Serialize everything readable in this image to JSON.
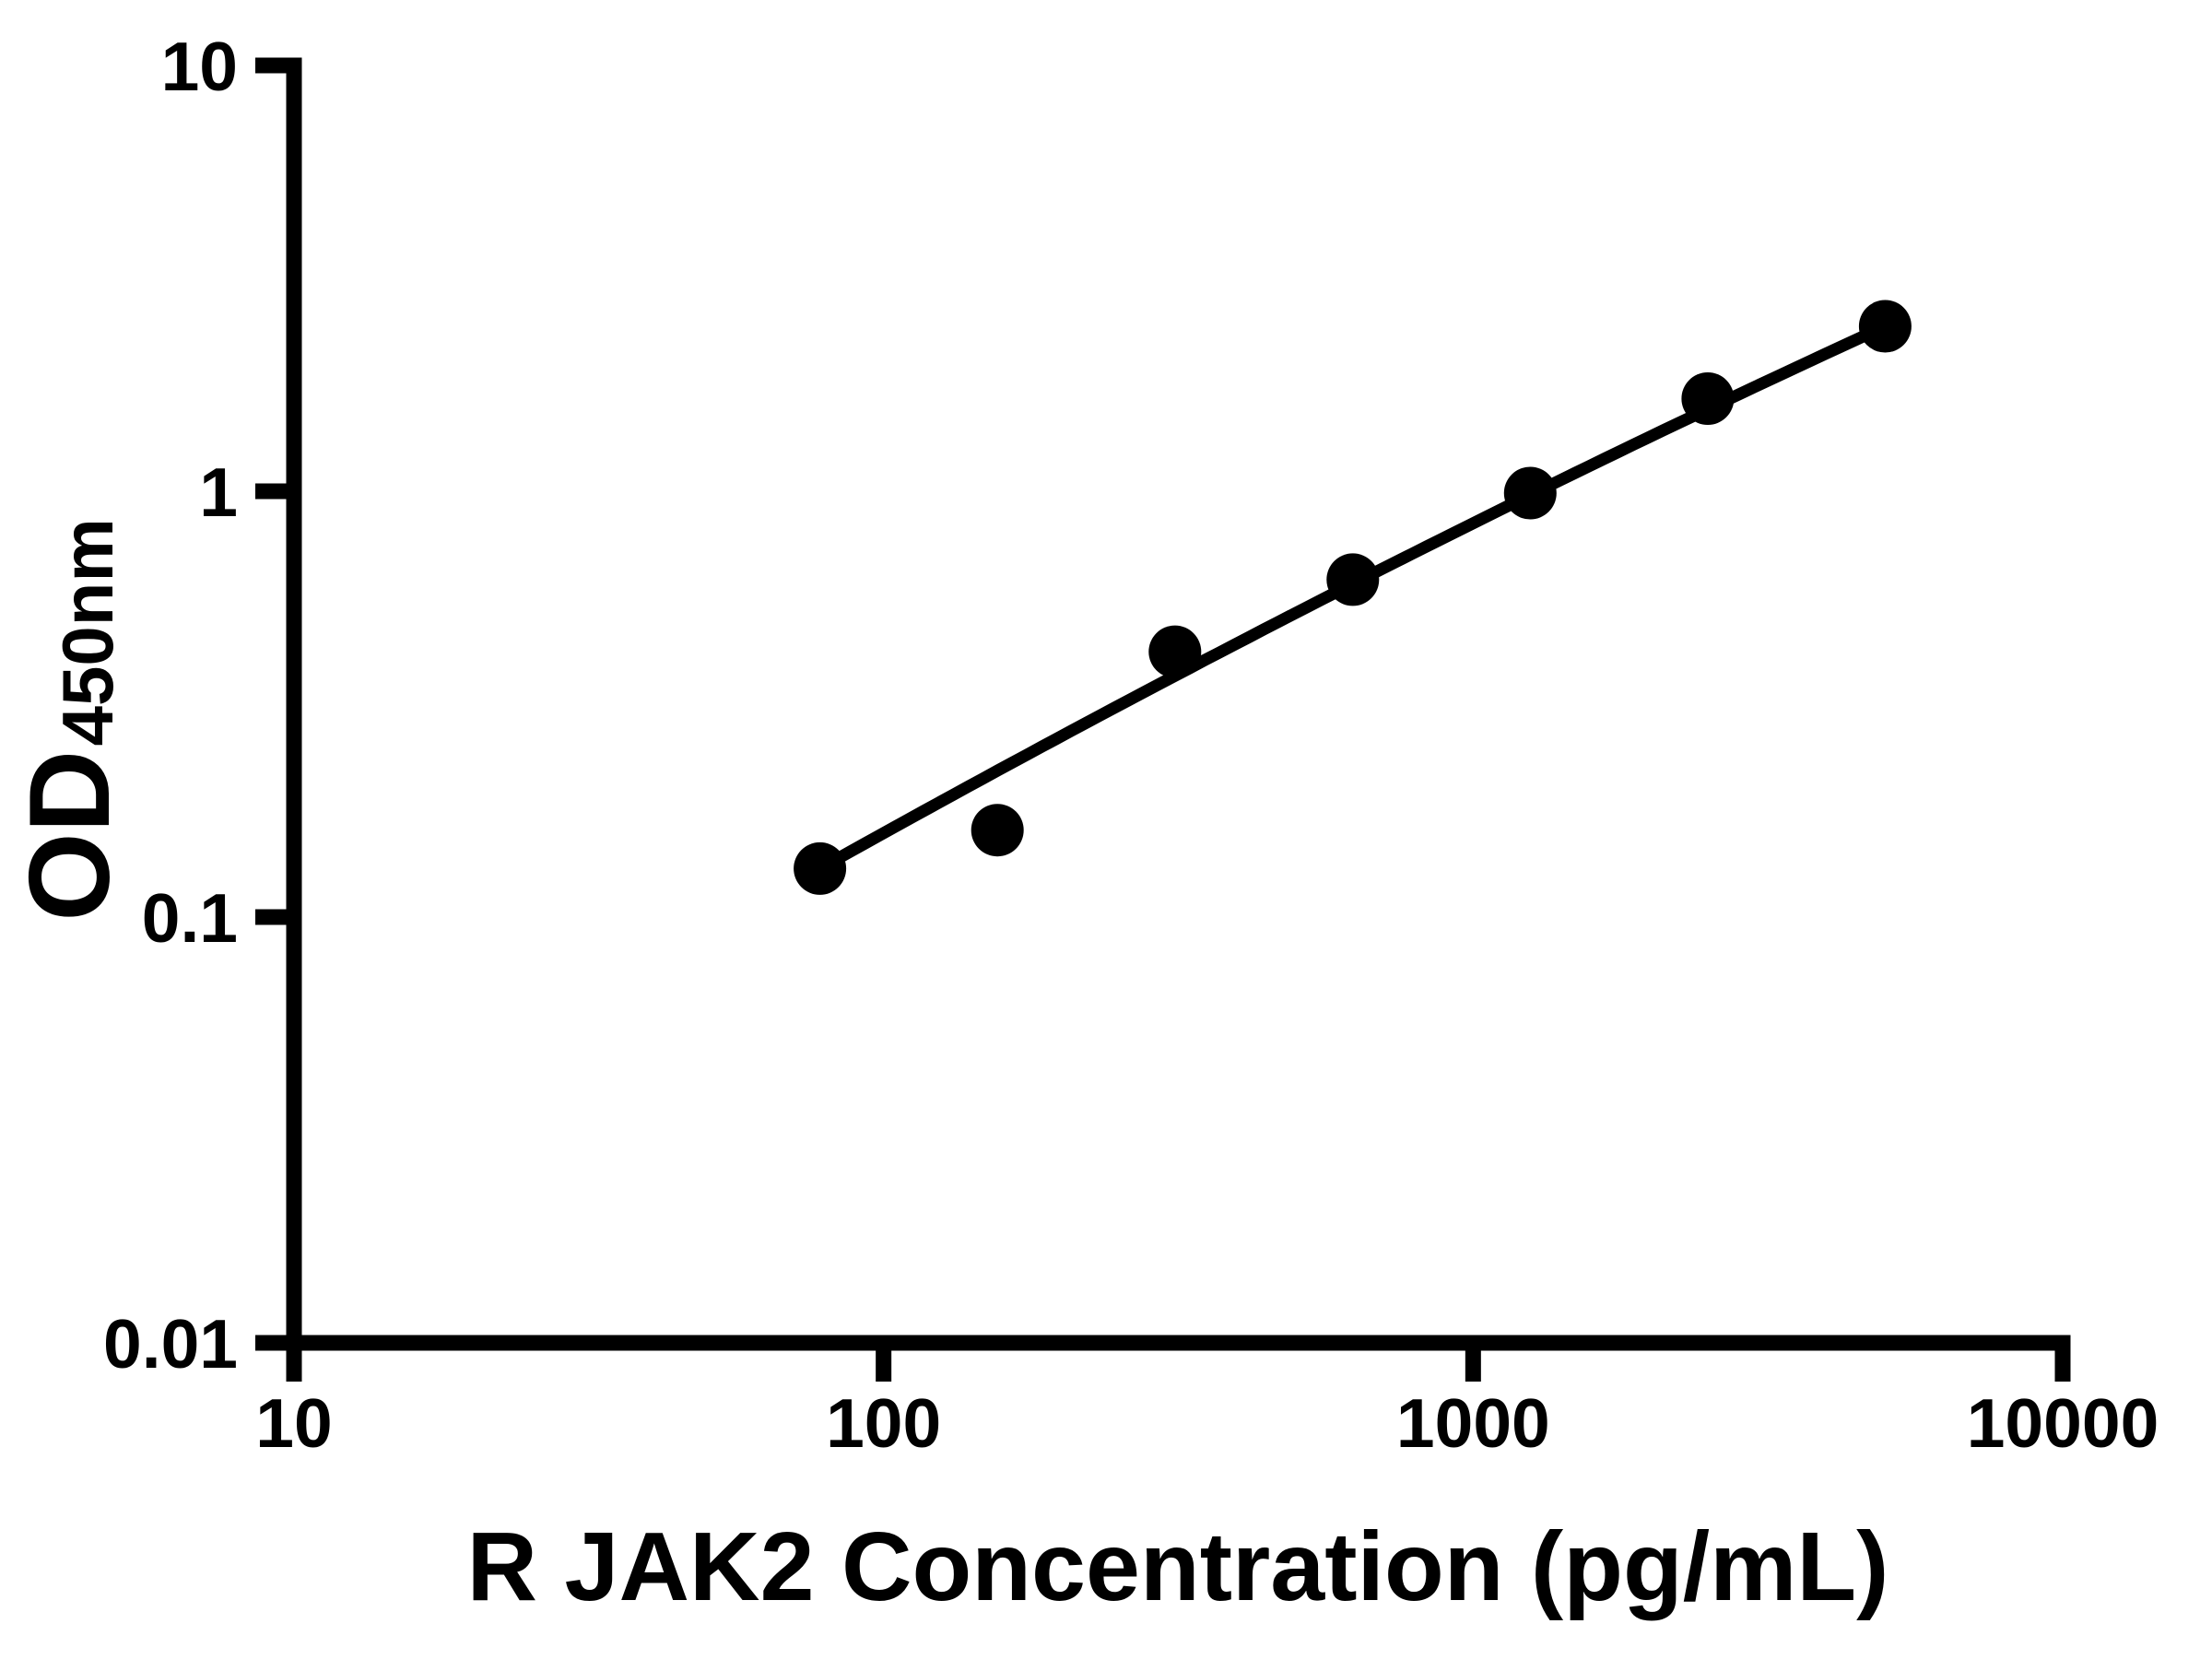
{
  "figure": {
    "background": "#ffffff",
    "foreground": "#000000"
  },
  "chart_data": {
    "type": "scatter",
    "subtype": "elisa-standard-curve",
    "title": "",
    "xlabel": "R JAK2 Concentration (pg/mL)",
    "ylabel_main": "OD",
    "ylabel_sub": "450nm",
    "x_scale": "log",
    "y_scale": "log",
    "xlim": [
      10,
      10000
    ],
    "ylim": [
      0.01,
      10
    ],
    "grid": "off",
    "legend": "none",
    "x_ticks": [
      {
        "value": 10,
        "label": "10"
      },
      {
        "value": 100,
        "label": "100"
      },
      {
        "value": 1000,
        "label": "1000"
      },
      {
        "value": 10000,
        "label": "10000"
      }
    ],
    "y_ticks": [
      {
        "value": 10,
        "label": "10"
      },
      {
        "value": 1,
        "label": "1"
      },
      {
        "value": 0.1,
        "label": "0.1"
      },
      {
        "value": 0.01,
        "label": "0.01"
      }
    ],
    "series": [
      {
        "marker": "filled-circle",
        "marker_color": "#000000",
        "line_color": "#000000",
        "has_fit_curve": true,
        "points": [
          {
            "x": 78,
            "y": 0.13
          },
          {
            "x": 156,
            "y": 0.16
          },
          {
            "x": 312,
            "y": 0.42
          },
          {
            "x": 625,
            "y": 0.62
          },
          {
            "x": 1250,
            "y": 0.99
          },
          {
            "x": 2500,
            "y": 1.65
          },
          {
            "x": 5000,
            "y": 2.44
          }
        ]
      }
    ]
  }
}
